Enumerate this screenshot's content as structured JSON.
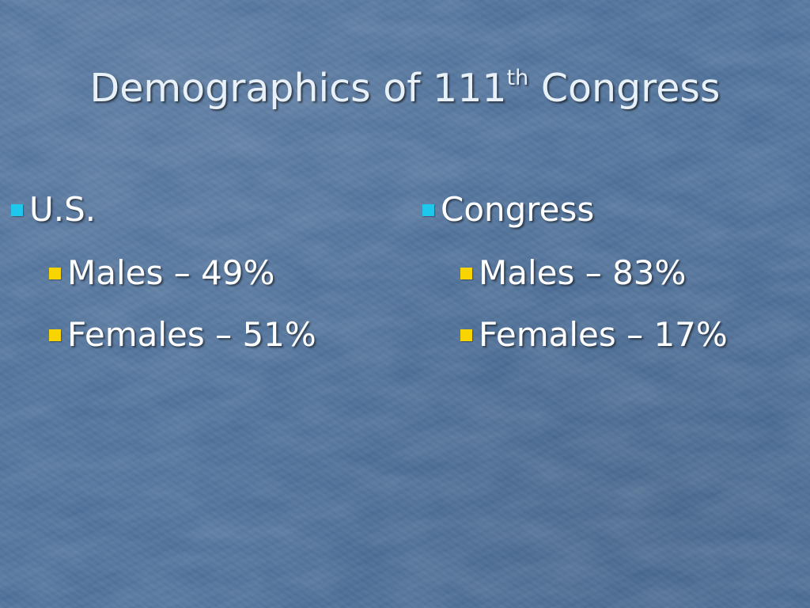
{
  "slide": {
    "title_main": "Demographics of 111",
    "title_sup": "th",
    "title_end": " Congress",
    "columns": [
      {
        "heading": "U.S.",
        "items": [
          {
            "text": "Males – 49%"
          },
          {
            "text": "Females – 51%"
          }
        ]
      },
      {
        "heading": "Congress",
        "items": [
          {
            "text": "Males – 83%"
          },
          {
            "text": "Females – 17%"
          }
        ]
      }
    ]
  },
  "colors": {
    "background": "#4a6d97",
    "bullet_level1": "#1ec8ec",
    "bullet_level2": "#f8d400",
    "text": "#ffffff"
  }
}
